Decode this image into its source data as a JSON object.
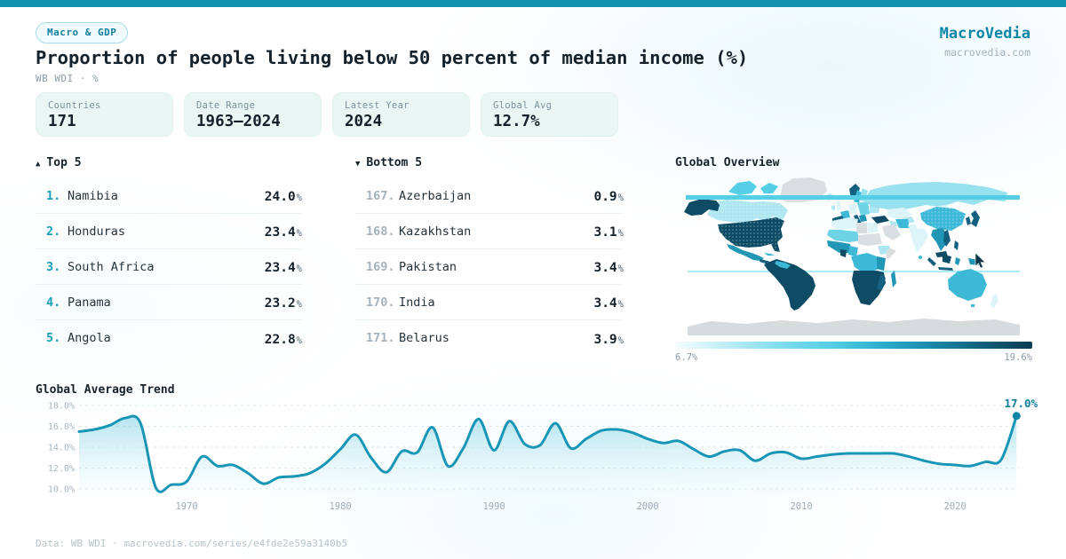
{
  "header": {
    "badge": "Macro & GDP",
    "title": "Proportion of people living below 50 percent of median income (%)",
    "subtitle": "WB WDI · %",
    "brand": "MacroVedia",
    "brand_url": "macrovedia.com"
  },
  "stats": [
    {
      "label": "Countries",
      "value": "171"
    },
    {
      "label": "Date Range",
      "value": "1963—2024"
    },
    {
      "label": "Latest Year",
      "value": "2024"
    },
    {
      "label": "Global Avg",
      "value": "12.7%"
    }
  ],
  "top5": {
    "arrow": "▲",
    "title": "Top 5",
    "rows": [
      {
        "rank": "1.",
        "name": "Namibia",
        "value": "24.0",
        "unit": "%"
      },
      {
        "rank": "2.",
        "name": "Honduras",
        "value": "23.4",
        "unit": "%"
      },
      {
        "rank": "3.",
        "name": "South Africa",
        "value": "23.4",
        "unit": "%"
      },
      {
        "rank": "4.",
        "name": "Panama",
        "value": "23.2",
        "unit": "%"
      },
      {
        "rank": "5.",
        "name": "Angola",
        "value": "22.8",
        "unit": "%"
      }
    ]
  },
  "bottom5": {
    "arrow": "▼",
    "title": "Bottom 5",
    "rows": [
      {
        "rank": "167.",
        "name": "Azerbaijan",
        "value": "0.9",
        "unit": "%"
      },
      {
        "rank": "168.",
        "name": "Kazakhstan",
        "value": "3.1",
        "unit": "%"
      },
      {
        "rank": "169.",
        "name": "Pakistan",
        "value": "3.4",
        "unit": "%"
      },
      {
        "rank": "170.",
        "name": "India",
        "value": "3.4",
        "unit": "%"
      },
      {
        "rank": "171.",
        "name": "Belarus",
        "value": "3.9",
        "unit": "%"
      }
    ]
  },
  "map": {
    "title": "Global Overview",
    "legend_min": "6.7%",
    "legend_max": "19.6%",
    "scale_min_color": "#f6fdfe",
    "scale_max_color": "#0c3c52"
  },
  "trend": {
    "title": "Global Average Trend",
    "end_label": "17.0%"
  },
  "chart_data": {
    "type": "line",
    "title": "Global Average Trend",
    "x": [
      1963,
      1964,
      1965,
      1966,
      1967,
      1968,
      1969,
      1970,
      1971,
      1972,
      1973,
      1974,
      1975,
      1976,
      1977,
      1978,
      1979,
      1980,
      1981,
      1982,
      1983,
      1984,
      1985,
      1986,
      1987,
      1988,
      1989,
      1990,
      1991,
      1992,
      1993,
      1994,
      1995,
      1996,
      1997,
      1998,
      1999,
      2000,
      2001,
      2002,
      2003,
      2004,
      2005,
      2006,
      2007,
      2008,
      2009,
      2010,
      2011,
      2012,
      2013,
      2014,
      2015,
      2016,
      2017,
      2018,
      2019,
      2020,
      2021,
      2022,
      2023,
      2024
    ],
    "values": [
      15.5,
      15.7,
      16.1,
      16.8,
      16.3,
      10.1,
      10.4,
      10.7,
      13.1,
      12.2,
      12.3,
      11.5,
      10.5,
      11.1,
      11.2,
      11.5,
      12.4,
      13.8,
      15.2,
      13.0,
      11.6,
      13.6,
      13.5,
      15.9,
      12.2,
      13.9,
      16.7,
      13.7,
      16.5,
      14.3,
      14.2,
      16.3,
      13.9,
      14.8,
      15.6,
      15.7,
      15.4,
      14.8,
      14.4,
      14.6,
      13.8,
      13.1,
      13.6,
      13.7,
      12.7,
      13.4,
      13.5,
      12.9,
      13.1,
      13.3,
      13.4,
      13.4,
      13.4,
      13.4,
      13.1,
      12.7,
      12.4,
      12.3,
      12.2,
      12.6,
      12.8,
      17.0
    ],
    "ylim": [
      10,
      18
    ],
    "yticks": [
      "18.0%",
      "16.0%",
      "14.0%",
      "12.0%",
      "10.0%"
    ],
    "ytick_values": [
      18,
      16,
      14,
      12,
      10
    ],
    "xticks": [
      1970,
      1980,
      1990,
      2000,
      2010,
      2020
    ],
    "end_label": "17.0%",
    "line_color": "#1996b6",
    "grid": true,
    "legend_position": "none"
  },
  "footer": "Data: WB WDI · macrovedia.com/series/e4fde2e59a3140b5"
}
